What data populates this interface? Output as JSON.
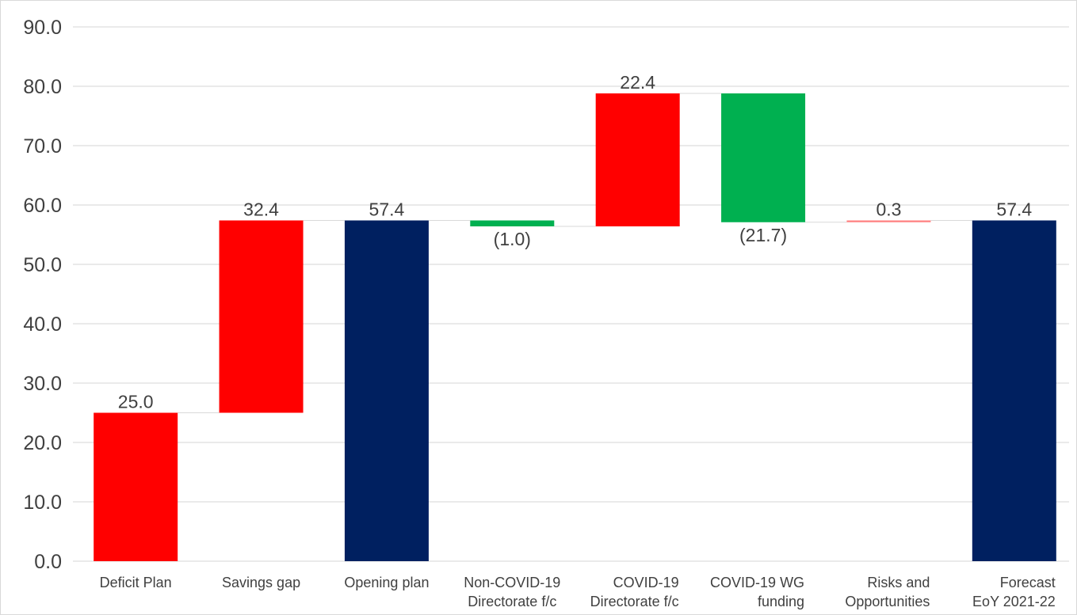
{
  "chart_data": {
    "type": "bar",
    "subtype": "waterfall",
    "title": "",
    "xlabel": "",
    "ylabel": "",
    "ylim": [
      0,
      90
    ],
    "yticks": [
      "0.0",
      "10.0",
      "20.0",
      "30.0",
      "40.0",
      "50.0",
      "60.0",
      "70.0",
      "80.0",
      "90.0"
    ],
    "grid": true,
    "legend": "none",
    "categories": [
      "Deficit Plan",
      "Savings gap",
      "Opening plan",
      "Non-COVID-19 Directorate f/c",
      "COVID-19 Directorate f/c",
      "COVID-19 WG funding",
      "Risks and Opportunities",
      "Forecast EoY 2021-22"
    ],
    "category_lines": [
      [
        "Deficit Plan"
      ],
      [
        "Savings gap"
      ],
      [
        "Opening plan"
      ],
      [
        "Non-COVID-19",
        "Directorate f/c"
      ],
      [
        "COVID-19",
        "Directorate f/c"
      ],
      [
        "COVID-19 WG",
        "funding"
      ],
      [
        "Risks and",
        "Opportunities"
      ],
      [
        "Forecast",
        "EoY 2021-22"
      ]
    ],
    "values": [
      25.0,
      32.4,
      57.4,
      -1.0,
      22.4,
      -21.7,
      0.3,
      57.4
    ],
    "bar_kinds": [
      "increase",
      "increase",
      "total",
      "decrease",
      "increase",
      "decrease",
      "increase",
      "total"
    ],
    "data_labels": [
      "25.0",
      "32.4",
      "57.4",
      "(1.0)",
      "22.4",
      "(21.7)",
      "0.3",
      "57.4"
    ],
    "colors": {
      "increase": "#ff0000",
      "decrease": "#00b050",
      "total": "#002060",
      "small_increase": "#ff8080"
    }
  }
}
